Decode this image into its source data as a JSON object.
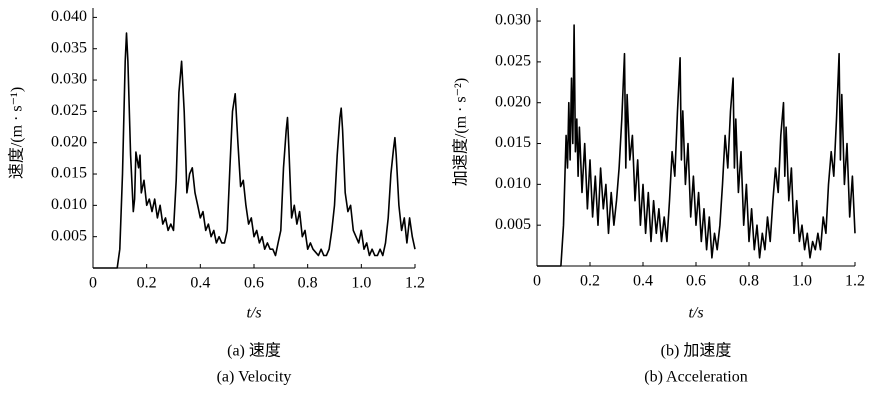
{
  "chart_data": [
    {
      "type": "line",
      "xlabel": "t/s",
      "ylabel": "速度/(m · s⁻¹)",
      "caption": "(a) 速度",
      "caption_en": "(a) Velocity",
      "xlim": [
        0,
        1.2
      ],
      "ylim": [
        0,
        0.0415
      ],
      "xticks": [
        0,
        0.2,
        0.4,
        0.6,
        0.8,
        {
          "value": 1,
          "label": "1.0"
        },
        1.2
      ],
      "yticks": [
        0.005,
        {
          "value": 0.01,
          "label": "0.010"
        },
        0.015,
        {
          "value": 0.02,
          "label": "0.020"
        },
        0.025,
        {
          "value": 0.03,
          "label": "0.030"
        },
        0.035,
        {
          "value": 0.04,
          "label": "0.040"
        }
      ],
      "color": "#000000",
      "x": [
        0,
        0.09,
        0.1,
        0.11,
        0.12,
        0.125,
        0.13,
        0.14,
        0.15,
        0.155,
        0.16,
        0.17,
        0.175,
        0.18,
        0.19,
        0.2,
        0.21,
        0.22,
        0.23,
        0.24,
        0.25,
        0.26,
        0.27,
        0.28,
        0.29,
        0.3,
        0.31,
        0.32,
        0.33,
        0.34,
        0.35,
        0.36,
        0.37,
        0.38,
        0.39,
        0.4,
        0.41,
        0.42,
        0.43,
        0.44,
        0.45,
        0.46,
        0.47,
        0.48,
        0.49,
        0.5,
        0.51,
        0.52,
        0.53,
        0.54,
        0.55,
        0.56,
        0.57,
        0.58,
        0.59,
        0.6,
        0.61,
        0.62,
        0.63,
        0.64,
        0.65,
        0.66,
        0.67,
        0.68,
        0.69,
        0.7,
        0.71,
        0.72,
        0.725,
        0.73,
        0.74,
        0.75,
        0.76,
        0.77,
        0.78,
        0.79,
        0.8,
        0.81,
        0.82,
        0.83,
        0.84,
        0.85,
        0.86,
        0.87,
        0.88,
        0.89,
        0.9,
        0.91,
        0.92,
        0.925,
        0.93,
        0.94,
        0.95,
        0.96,
        0.97,
        0.98,
        0.99,
        1.0,
        1.01,
        1.02,
        1.03,
        1.04,
        1.05,
        1.06,
        1.07,
        1.08,
        1.09,
        1.1,
        1.11,
        1.12,
        1.125,
        1.13,
        1.14,
        1.15,
        1.16,
        1.17,
        1.18,
        1.19,
        1.2
      ],
      "values": [
        0,
        0,
        0.003,
        0.015,
        0.033,
        0.0375,
        0.033,
        0.018,
        0.009,
        0.011,
        0.0185,
        0.016,
        0.018,
        0.012,
        0.014,
        0.01,
        0.011,
        0.009,
        0.011,
        0.008,
        0.01,
        0.007,
        0.008,
        0.006,
        0.007,
        0.006,
        0.014,
        0.028,
        0.033,
        0.025,
        0.012,
        0.015,
        0.016,
        0.012,
        0.01,
        0.008,
        0.009,
        0.006,
        0.007,
        0.005,
        0.006,
        0.004,
        0.005,
        0.004,
        0.004,
        0.006,
        0.016,
        0.025,
        0.0278,
        0.02,
        0.013,
        0.014,
        0.01,
        0.007,
        0.008,
        0.005,
        0.006,
        0.004,
        0.005,
        0.003,
        0.004,
        0.003,
        0.003,
        0.002,
        0.004,
        0.006,
        0.016,
        0.022,
        0.024,
        0.019,
        0.008,
        0.01,
        0.007,
        0.009,
        0.005,
        0.006,
        0.003,
        0.004,
        0.003,
        0.0025,
        0.002,
        0.003,
        0.002,
        0.002,
        0.003,
        0.006,
        0.01,
        0.018,
        0.024,
        0.0255,
        0.022,
        0.012,
        0.009,
        0.01,
        0.006,
        0.005,
        0.004,
        0.006,
        0.003,
        0.004,
        0.002,
        0.003,
        0.002,
        0.002,
        0.003,
        0.002,
        0.004,
        0.008,
        0.015,
        0.019,
        0.0208,
        0.018,
        0.01,
        0.006,
        0.008,
        0.004,
        0.008,
        0.005,
        0.003
      ]
    },
    {
      "type": "line",
      "xlabel": "t/s",
      "ylabel": "加速度/(m · s⁻²)",
      "caption": "(b) 加速度",
      "caption_en": "(b) Acceleration",
      "xlim": [
        0,
        1.2
      ],
      "ylim": [
        0,
        0.0316
      ],
      "xticks": [
        0,
        0.2,
        0.4,
        0.6,
        0.8,
        {
          "value": 1,
          "label": "1.0"
        },
        1.2
      ],
      "yticks": [
        0.005,
        {
          "value": 0.01,
          "label": "0.010"
        },
        0.015,
        {
          "value": 0.02,
          "label": "0.020"
        },
        0.025,
        {
          "value": 0.03,
          "label": "0.030"
        }
      ],
      "color": "#000000",
      "x": [
        0,
        0.09,
        0.1,
        0.11,
        0.115,
        0.12,
        0.125,
        0.13,
        0.135,
        0.14,
        0.145,
        0.15,
        0.155,
        0.16,
        0.17,
        0.18,
        0.19,
        0.2,
        0.21,
        0.22,
        0.23,
        0.24,
        0.25,
        0.26,
        0.27,
        0.28,
        0.29,
        0.3,
        0.31,
        0.32,
        0.33,
        0.335,
        0.34,
        0.35,
        0.36,
        0.37,
        0.38,
        0.39,
        0.4,
        0.41,
        0.42,
        0.43,
        0.44,
        0.45,
        0.46,
        0.47,
        0.48,
        0.49,
        0.5,
        0.51,
        0.52,
        0.53,
        0.54,
        0.545,
        0.55,
        0.56,
        0.57,
        0.58,
        0.59,
        0.6,
        0.61,
        0.62,
        0.63,
        0.64,
        0.65,
        0.66,
        0.67,
        0.68,
        0.69,
        0.7,
        0.71,
        0.72,
        0.73,
        0.74,
        0.745,
        0.75,
        0.76,
        0.77,
        0.78,
        0.79,
        0.8,
        0.81,
        0.82,
        0.83,
        0.84,
        0.85,
        0.86,
        0.87,
        0.88,
        0.89,
        0.9,
        0.91,
        0.92,
        0.93,
        0.935,
        0.94,
        0.95,
        0.96,
        0.97,
        0.98,
        0.99,
        1.0,
        1.01,
        1.02,
        1.03,
        1.04,
        1.05,
        1.06,
        1.07,
        1.08,
        1.09,
        1.1,
        1.11,
        1.12,
        1.13,
        1.14,
        1.145,
        1.15,
        1.16,
        1.17,
        1.18,
        1.19,
        1.2
      ],
      "values": [
        0,
        0,
        0.005,
        0.016,
        0.012,
        0.02,
        0.013,
        0.023,
        0.015,
        0.0295,
        0.014,
        0.018,
        0.011,
        0.017,
        0.009,
        0.015,
        0.007,
        0.013,
        0.006,
        0.011,
        0.005,
        0.012,
        0.007,
        0.01,
        0.004,
        0.009,
        0.005,
        0.008,
        0.012,
        0.018,
        0.026,
        0.012,
        0.021,
        0.013,
        0.016,
        0.008,
        0.013,
        0.005,
        0.01,
        0.004,
        0.009,
        0.003,
        0.008,
        0.004,
        0.007,
        0.003,
        0.006,
        0.003,
        0.008,
        0.014,
        0.011,
        0.019,
        0.0255,
        0.013,
        0.019,
        0.01,
        0.015,
        0.006,
        0.011,
        0.005,
        0.009,
        0.003,
        0.007,
        0.002,
        0.006,
        0.001,
        0.004,
        0.002,
        0.005,
        0.01,
        0.016,
        0.012,
        0.019,
        0.023,
        0.012,
        0.018,
        0.009,
        0.014,
        0.005,
        0.01,
        0.003,
        0.007,
        0.002,
        0.005,
        0.001,
        0.004,
        0.002,
        0.006,
        0.003,
        0.008,
        0.012,
        0.009,
        0.016,
        0.02,
        0.011,
        0.017,
        0.008,
        0.012,
        0.004,
        0.008,
        0.003,
        0.005,
        0.002,
        0.004,
        0.001,
        0.003,
        0.002,
        0.004,
        0.002,
        0.006,
        0.004,
        0.01,
        0.014,
        0.011,
        0.018,
        0.026,
        0.013,
        0.021,
        0.01,
        0.015,
        0.006,
        0.011,
        0.004
      ]
    }
  ]
}
